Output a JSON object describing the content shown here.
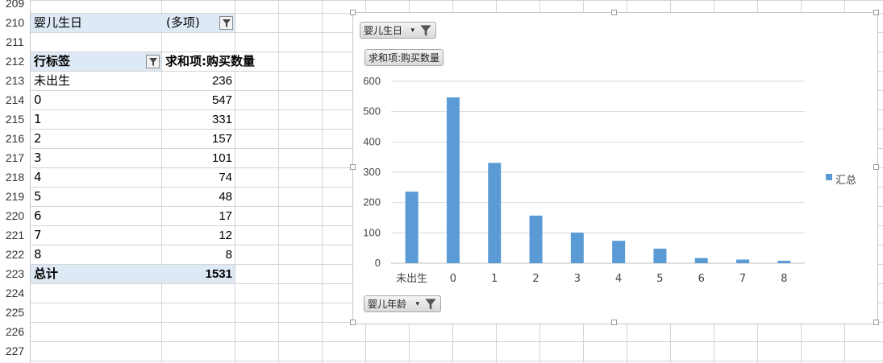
{
  "sheet": {
    "row_numbers": [
      "209",
      "210",
      "211",
      "212",
      "213",
      "214",
      "215",
      "216",
      "217",
      "218",
      "219",
      "220",
      "221",
      "222",
      "223",
      "224",
      "225",
      "226",
      "227"
    ],
    "filter_field": "婴儿生日",
    "filter_value": "(多项)",
    "row_label_header": "行标签",
    "value_header": "求和项:购买数量",
    "rows": [
      {
        "label": "未出生",
        "value": "236"
      },
      {
        "label": "0",
        "value": "547"
      },
      {
        "label": "1",
        "value": "331"
      },
      {
        "label": "2",
        "value": "157"
      },
      {
        "label": "3",
        "value": "101"
      },
      {
        "label": "4",
        "value": "74"
      },
      {
        "label": "5",
        "value": "48"
      },
      {
        "label": "6",
        "value": "17"
      },
      {
        "label": "7",
        "value": "12"
      },
      {
        "label": "8",
        "value": "8"
      }
    ],
    "total_label": "总计",
    "total_value": "1531"
  },
  "chart": {
    "filter_button": "婴儿生日",
    "value_button": "求和项:购买数量",
    "axis_button": "婴儿年龄",
    "legend_label": "汇总",
    "bar_color": "#5b9bd5"
  },
  "chart_data": {
    "type": "bar",
    "categories": [
      "未出生",
      "0",
      "1",
      "2",
      "3",
      "4",
      "5",
      "6",
      "7",
      "8"
    ],
    "series": [
      {
        "name": "汇总",
        "values": [
          236,
          547,
          331,
          157,
          101,
          74,
          48,
          17,
          12,
          8
        ]
      }
    ],
    "ylim": [
      0,
      600
    ],
    "yticks": [
      0,
      100,
      200,
      300,
      400,
      500,
      600
    ],
    "grid": true,
    "legend": "right"
  }
}
